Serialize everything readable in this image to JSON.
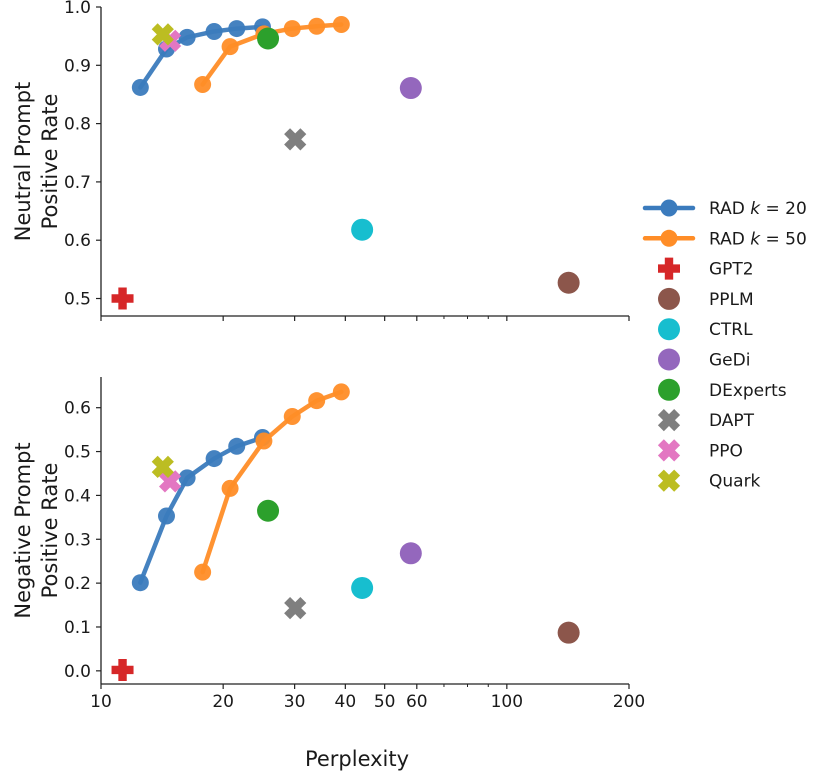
{
  "chart_data": {
    "type": "scatter",
    "x_scale": "log",
    "xlabel": "Perplexity",
    "xlim": [
      10,
      200
    ],
    "x_ticks": [
      10,
      20,
      30,
      40,
      50,
      60,
      100,
      200
    ],
    "x_tick_labels": [
      "10",
      "20",
      "30",
      "40",
      "50",
      "60",
      "100",
      "200"
    ],
    "x_minor_ticks": [
      70,
      80,
      90
    ],
    "legend": {
      "position": "right",
      "entries": [
        {
          "label": "RAD k=20",
          "main": "RAD ",
          "var": "k",
          "rest": " = 20",
          "color": "#3b7bbd",
          "marker": "circle-line"
        },
        {
          "label": "RAD k=50",
          "main": "RAD ",
          "var": "k",
          "rest": " = 50",
          "color": "#ff8d27",
          "marker": "circle-line"
        },
        {
          "label": "GPT2",
          "color": "#d62728",
          "marker": "plus"
        },
        {
          "label": "PPLM",
          "color": "#8c564b",
          "marker": "circle"
        },
        {
          "label": "CTRL",
          "color": "#17becf",
          "marker": "circle"
        },
        {
          "label": "GeDi",
          "color": "#9467bd",
          "marker": "circle"
        },
        {
          "label": "DExperts",
          "color": "#2ca02c",
          "marker": "circle"
        },
        {
          "label": "DAPT",
          "color": "#7f7f7f",
          "marker": "x"
        },
        {
          "label": "PPO",
          "color": "#e377c2",
          "marker": "x"
        },
        {
          "label": "Quark",
          "color": "#bcbd22",
          "marker": "x"
        }
      ]
    },
    "panels": [
      {
        "id": "neutral",
        "ylabel_lines": [
          "Neutral Prompt",
          "Positive Rate"
        ],
        "ylim": [
          0.47,
          1.0
        ],
        "y_ticks": [
          0.5,
          0.6,
          0.7,
          0.8,
          0.9,
          1.0
        ],
        "y_tick_labels": [
          "0.5",
          "0.6",
          "0.7",
          "0.8",
          "0.9",
          "1.0"
        ],
        "series": [
          {
            "name": "RAD k=20",
            "color": "#3b7bbd",
            "x": [
              12.5,
              14.5,
              16.3,
              19.0,
              21.6,
              25.0
            ],
            "y": [
              0.862,
              0.928,
              0.948,
              0.958,
              0.963,
              0.966
            ]
          },
          {
            "name": "RAD k=50",
            "color": "#ff8d27",
            "x": [
              17.8,
              20.8,
              25.2,
              29.6,
              34.0,
              39.1
            ],
            "y": [
              0.867,
              0.932,
              0.954,
              0.963,
              0.967,
              0.97
            ]
          }
        ],
        "points": [
          {
            "name": "GPT2",
            "x": 11.3,
            "y": 0.5
          },
          {
            "name": "PPLM",
            "x": 142,
            "y": 0.527
          },
          {
            "name": "CTRL",
            "x": 44,
            "y": 0.618
          },
          {
            "name": "GeDi",
            "x": 58,
            "y": 0.861
          },
          {
            "name": "DExperts",
            "x": 25.8,
            "y": 0.946
          },
          {
            "name": "DAPT",
            "x": 30.1,
            "y": 0.773
          },
          {
            "name": "PPO",
            "x": 14.8,
            "y": 0.942
          },
          {
            "name": "Quark",
            "x": 14.2,
            "y": 0.953
          }
        ]
      },
      {
        "id": "negative",
        "ylabel_lines": [
          "Negative Prompt",
          "Positive Rate"
        ],
        "ylim": [
          -0.03,
          0.67
        ],
        "y_ticks": [
          0.0,
          0.1,
          0.2,
          0.3,
          0.4,
          0.5,
          0.6
        ],
        "y_tick_labels": [
          "0.0",
          "0.1",
          "0.2",
          "0.3",
          "0.4",
          "0.5",
          "0.6"
        ],
        "series": [
          {
            "name": "RAD k=20",
            "color": "#3b7bbd",
            "x": [
              12.5,
              14.5,
              16.3,
              19.0,
              21.6,
              25.0
            ],
            "y": [
              0.201,
              0.353,
              0.44,
              0.484,
              0.512,
              0.532
            ]
          },
          {
            "name": "RAD k=50",
            "color": "#ff8d27",
            "x": [
              17.8,
              20.8,
              25.2,
              29.6,
              34.0,
              39.1
            ],
            "y": [
              0.225,
              0.416,
              0.524,
              0.58,
              0.616,
              0.636
            ]
          }
        ],
        "points": [
          {
            "name": "GPT2",
            "x": 11.3,
            "y": 0.002
          },
          {
            "name": "PPLM",
            "x": 142,
            "y": 0.087
          },
          {
            "name": "CTRL",
            "x": 44,
            "y": 0.189
          },
          {
            "name": "GeDi",
            "x": 58,
            "y": 0.268
          },
          {
            "name": "DExperts",
            "x": 25.8,
            "y": 0.365
          },
          {
            "name": "DAPT",
            "x": 30.1,
            "y": 0.143
          },
          {
            "name": "PPO",
            "x": 14.8,
            "y": 0.432
          },
          {
            "name": "Quark",
            "x": 14.2,
            "y": 0.465
          }
        ]
      }
    ]
  }
}
